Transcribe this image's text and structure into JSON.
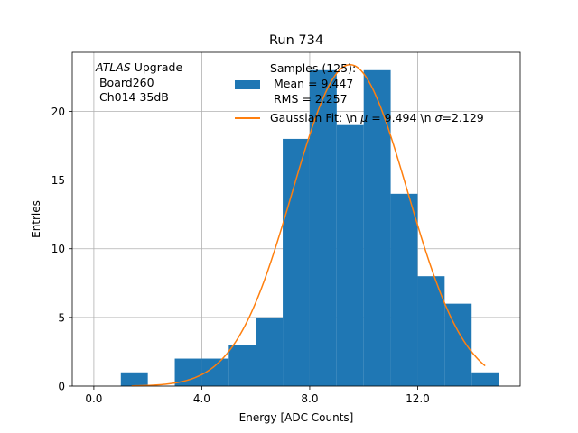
{
  "chart_data": {
    "type": "bar",
    "title": "Run 734",
    "xlabel": "Energy [ADC Counts]",
    "ylabel": "Entries",
    "xlim": [
      -0.8,
      15.8
    ],
    "ylim": [
      0,
      24.3
    ],
    "grid": true,
    "x_ticks": [
      0,
      4,
      8,
      12
    ],
    "x_tick_labels": [
      "0.0",
      "4.0",
      "8.0",
      "12.0"
    ],
    "y_ticks": [
      0,
      5,
      10,
      15,
      20
    ],
    "y_tick_labels": [
      "0",
      "5",
      "10",
      "15",
      "20"
    ],
    "histogram": {
      "name": "Samples (125):",
      "bin_edges": [
        1,
        2,
        3,
        4,
        5,
        6,
        7,
        8,
        9,
        10,
        11,
        12,
        13,
        14,
        15
      ],
      "values": [
        1,
        0,
        2,
        2,
        3,
        5,
        18,
        23,
        19,
        23,
        14,
        8,
        6,
        1
      ],
      "color": "#1f77b4"
    },
    "fit": {
      "name": "Gaussian Fit",
      "mu": 9.494,
      "sigma": 2.129,
      "amplitude": 23.4,
      "x_range": [
        1.4,
        14.5
      ],
      "color": "#ff7f0e"
    },
    "annotation": {
      "experiment": "ATLAS",
      "experiment_suffix": " Upgrade",
      "line2": " Board260",
      "line3": " Ch014 35dB"
    },
    "legend": {
      "position": "top-center",
      "hist_line1": "Samples (125):",
      "hist_line2": " Mean = 9.447",
      "hist_line3": " RMS = 2.257",
      "fit_prefix": "Gaussian Fit: \\n ",
      "fit_mu_symbol": "μ",
      "fit_middle": " = 9.494 \\n ",
      "fit_sigma_symbol": "σ",
      "fit_suffix": "=2.129"
    }
  }
}
